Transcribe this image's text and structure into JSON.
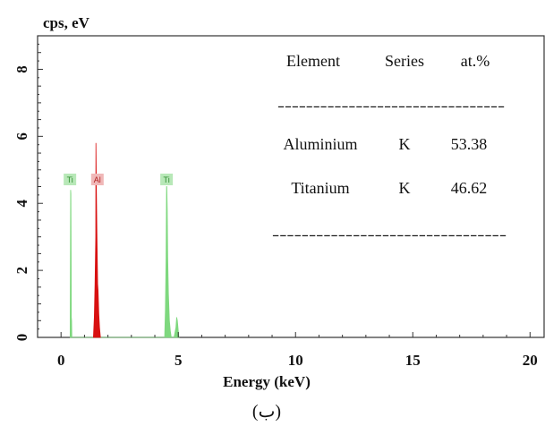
{
  "chart_data": {
    "type": "area",
    "title": "",
    "ylabel": "cps, eV",
    "xlabel": "Energy (keV)",
    "caption": "(ب)",
    "xlim": [
      -1.0,
      20.6
    ],
    "ylim": [
      0,
      9
    ],
    "xticks": [
      0,
      5,
      10,
      15,
      20
    ],
    "yticks": [
      0,
      2,
      4,
      6,
      8
    ],
    "grid": false,
    "legend": "none",
    "series": [
      {
        "name": "Ti",
        "color": "#7ed87e",
        "x": [
          0.39,
          0.4,
          0.41,
          0.42,
          0.43,
          0.44,
          0.45,
          0.46,
          4.42,
          4.45,
          4.48,
          4.5,
          4.51,
          4.53,
          4.55,
          4.58,
          4.62,
          4.66,
          4.7,
          4.82,
          4.9,
          4.93,
          4.96,
          5.0,
          5.03
        ],
        "y": [
          0,
          2.6,
          4.4,
          4.3,
          2.4,
          0.6,
          0.5,
          0,
          0,
          0.8,
          2.4,
          4.5,
          4.5,
          3.8,
          2.4,
          1.3,
          0.5,
          0.2,
          0,
          0,
          0.3,
          0.6,
          0.5,
          0.2,
          0
        ]
      },
      {
        "name": "Al",
        "color": "#d81010",
        "x": [
          1.38,
          1.42,
          1.45,
          1.48,
          1.49,
          1.51,
          1.53,
          1.56,
          1.58,
          1.61,
          1.64,
          1.68
        ],
        "y": [
          0,
          0.6,
          1.6,
          3.0,
          5.8,
          4.2,
          3.1,
          1.6,
          1.4,
          0.7,
          0.3,
          0
        ]
      }
    ],
    "peak_labels": [
      {
        "text": "Ti",
        "x": 0.38,
        "y": 4.7,
        "color": "#2e8b2e",
        "bg": "#b8e8b8"
      },
      {
        "text": "Al",
        "x": 1.55,
        "y": 4.7,
        "color": "#b02020",
        "bg": "#f0b8b8"
      },
      {
        "text": "Ti",
        "x": 4.5,
        "y": 4.7,
        "color": "#2e8b2e",
        "bg": "#b8e8b8"
      }
    ],
    "table": {
      "headers": [
        "Element",
        "Series",
        "at.%"
      ],
      "rows": [
        [
          "Aluminium",
          "K",
          "53.38"
        ],
        [
          "Titanium",
          "K",
          "46.62"
        ]
      ],
      "rule": "--------------------------------"
    }
  }
}
